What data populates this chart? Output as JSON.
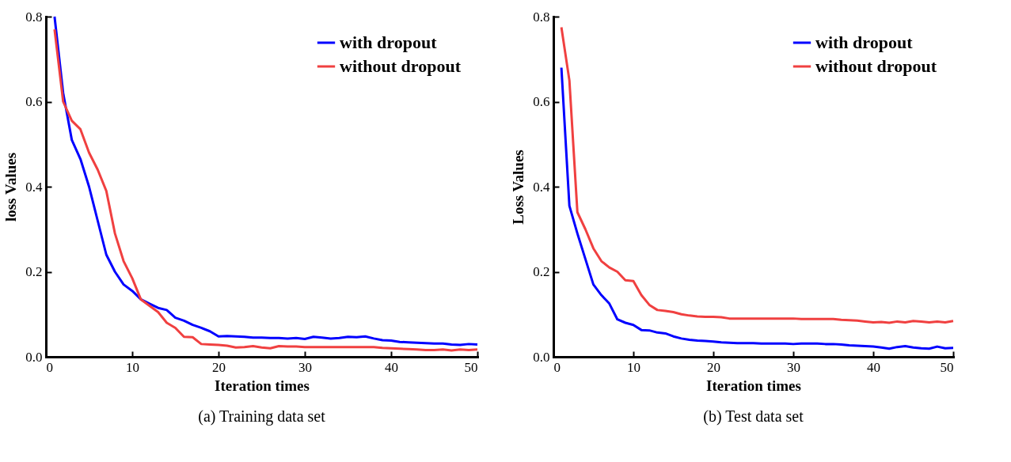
{
  "chart_data": [
    {
      "type": "line",
      "title": "(a) Training data set",
      "xlabel": "Iteration times",
      "ylabel": "loss Values",
      "x": [
        1,
        2,
        3,
        4,
        5,
        6,
        7,
        8,
        9,
        10,
        11,
        12,
        13,
        14,
        15,
        16,
        17,
        18,
        19,
        20,
        21,
        22,
        23,
        24,
        25,
        26,
        27,
        28,
        29,
        30,
        31,
        32,
        33,
        34,
        35,
        36,
        37,
        38,
        39,
        40,
        41,
        42,
        43,
        44,
        45,
        46,
        47,
        48,
        49,
        50
      ],
      "series": [
        {
          "name": "with dropout",
          "color": "#0000ff",
          "values": [
            0.8,
            0.62,
            0.51,
            0.465,
            0.4,
            0.32,
            0.24,
            0.2,
            0.17,
            0.155,
            0.135,
            0.125,
            0.115,
            0.11,
            0.092,
            0.085,
            0.075,
            0.068,
            0.06,
            0.048,
            0.049,
            0.048,
            0.047,
            0.045,
            0.045,
            0.044,
            0.044,
            0.043,
            0.044,
            0.042,
            0.047,
            0.045,
            0.043,
            0.044,
            0.047,
            0.046,
            0.048,
            0.043,
            0.039,
            0.038,
            0.035,
            0.034,
            0.033,
            0.032,
            0.031,
            0.031,
            0.029,
            0.028,
            0.03,
            0.029
          ]
        },
        {
          "name": "without dropout",
          "color": "#f04040",
          "values": [
            0.77,
            0.6,
            0.555,
            0.535,
            0.48,
            0.44,
            0.39,
            0.29,
            0.225,
            0.185,
            0.135,
            0.12,
            0.105,
            0.08,
            0.068,
            0.047,
            0.046,
            0.03,
            0.029,
            0.028,
            0.026,
            0.022,
            0.023,
            0.025,
            0.022,
            0.02,
            0.025,
            0.024,
            0.024,
            0.023,
            0.023,
            0.023,
            0.023,
            0.023,
            0.023,
            0.023,
            0.023,
            0.023,
            0.021,
            0.02,
            0.019,
            0.018,
            0.017,
            0.016,
            0.016,
            0.017,
            0.015,
            0.017,
            0.016,
            0.017
          ]
        }
      ],
      "xlim": [
        0,
        50
      ],
      "xticks": [
        0,
        10,
        20,
        30,
        40,
        50
      ],
      "ylim": [
        0,
        0.8
      ],
      "yticks": [
        {
          "value": 0,
          "label": "0.0"
        },
        {
          "value": 0.2,
          "label": "0.2"
        },
        {
          "value": 0.4,
          "label": "0.4"
        },
        {
          "value": 0.6,
          "label": "0.6"
        },
        {
          "value": 0.8,
          "label": "0.8"
        }
      ],
      "legend": "top right",
      "grid": false,
      "marker": "none",
      "line_style": "solid"
    },
    {
      "type": "line",
      "title": "(b) Test data set",
      "xlabel": "Iteration times",
      "ylabel": "Loss Values",
      "x": [
        1,
        2,
        3,
        4,
        5,
        6,
        7,
        8,
        9,
        10,
        11,
        12,
        13,
        14,
        15,
        16,
        17,
        18,
        19,
        20,
        21,
        22,
        23,
        24,
        25,
        26,
        27,
        28,
        29,
        30,
        31,
        32,
        33,
        34,
        35,
        36,
        37,
        38,
        39,
        40,
        41,
        42,
        43,
        44,
        45,
        46,
        47,
        48,
        49,
        50
      ],
      "series": [
        {
          "name": "with dropout",
          "color": "#0000ff",
          "values": [
            0.68,
            0.355,
            0.29,
            0.23,
            0.17,
            0.145,
            0.125,
            0.088,
            0.08,
            0.075,
            0.063,
            0.062,
            0.057,
            0.055,
            0.048,
            0.043,
            0.04,
            0.038,
            0.037,
            0.036,
            0.034,
            0.033,
            0.032,
            0.032,
            0.032,
            0.031,
            0.031,
            0.031,
            0.031,
            0.03,
            0.031,
            0.031,
            0.031,
            0.03,
            0.03,
            0.029,
            0.027,
            0.026,
            0.025,
            0.024,
            0.022,
            0.019,
            0.023,
            0.025,
            0.022,
            0.02,
            0.019,
            0.024,
            0.02,
            0.021
          ]
        },
        {
          "name": "without dropout",
          "color": "#f04040",
          "values": [
            0.775,
            0.65,
            0.34,
            0.3,
            0.255,
            0.225,
            0.21,
            0.2,
            0.18,
            0.178,
            0.145,
            0.122,
            0.11,
            0.108,
            0.105,
            0.1,
            0.097,
            0.095,
            0.094,
            0.094,
            0.093,
            0.09,
            0.09,
            0.09,
            0.09,
            0.09,
            0.09,
            0.09,
            0.09,
            0.09,
            0.089,
            0.089,
            0.089,
            0.089,
            0.089,
            0.087,
            0.086,
            0.085,
            0.083,
            0.081,
            0.082,
            0.08,
            0.083,
            0.081,
            0.084,
            0.083,
            0.081,
            0.083,
            0.081,
            0.084
          ]
        }
      ],
      "xlim": [
        0,
        50
      ],
      "xticks": [
        0,
        10,
        20,
        30,
        40,
        50
      ],
      "ylim": [
        0,
        0.8
      ],
      "yticks": [
        {
          "value": 0,
          "label": "0.0"
        },
        {
          "value": 0.2,
          "label": "0.2"
        },
        {
          "value": 0.4,
          "label": "0.4"
        },
        {
          "value": 0.6,
          "label": "0.6"
        },
        {
          "value": 0.8,
          "label": "0.8"
        }
      ],
      "legend": "top right",
      "grid": false,
      "marker": "none",
      "line_style": "solid"
    }
  ]
}
